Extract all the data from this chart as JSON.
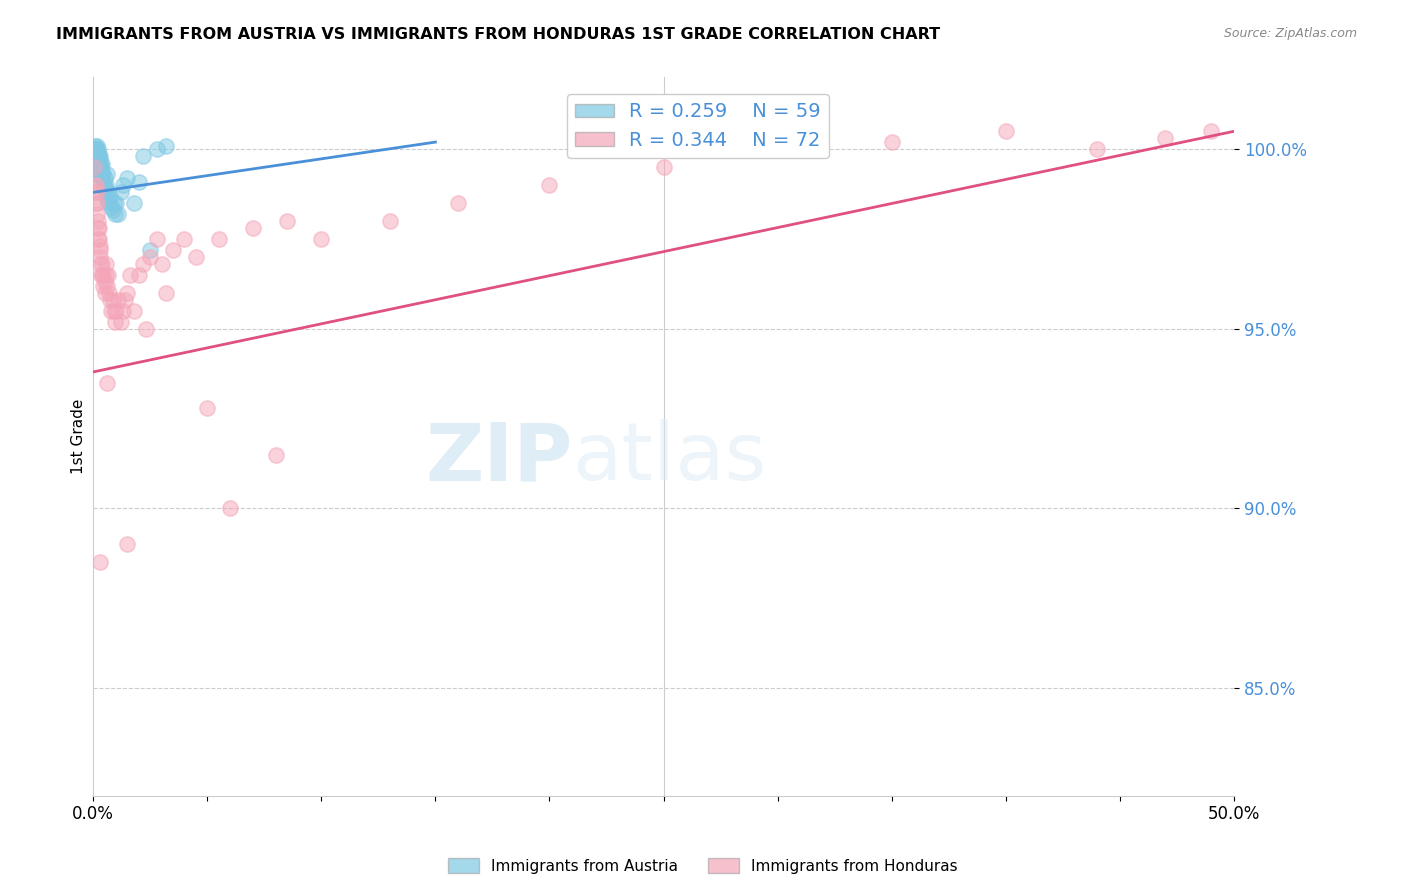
{
  "title": "IMMIGRANTS FROM AUSTRIA VS IMMIGRANTS FROM HONDURAS 1ST GRADE CORRELATION CHART",
  "source": "Source: ZipAtlas.com",
  "ylabel": "1st Grade",
  "xlim": [
    0.0,
    50.0
  ],
  "ylim": [
    82.0,
    102.0
  ],
  "yticks": [
    85.0,
    90.0,
    95.0,
    100.0
  ],
  "ytick_labels": [
    "85.0%",
    "90.0%",
    "95.0%",
    "100.0%"
  ],
  "austria_R": 0.259,
  "austria_N": 59,
  "honduras_R": 0.344,
  "honduras_N": 72,
  "austria_color": "#7ec8e3",
  "honduras_color": "#f4a6b8",
  "austria_line_color": "#4a90d9",
  "honduras_line_color": "#e05080",
  "legend_austria_label": "Immigrants from Austria",
  "legend_honduras_label": "Immigrants from Honduras",
  "watermark_zip": "ZIP",
  "watermark_atlas": "atlas",
  "austria_x": [
    0.05,
    0.08,
    0.1,
    0.1,
    0.12,
    0.12,
    0.13,
    0.15,
    0.15,
    0.16,
    0.17,
    0.18,
    0.18,
    0.2,
    0.2,
    0.2,
    0.22,
    0.22,
    0.25,
    0.25,
    0.28,
    0.28,
    0.3,
    0.3,
    0.32,
    0.32,
    0.35,
    0.35,
    0.38,
    0.4,
    0.4,
    0.42,
    0.45,
    0.48,
    0.5,
    0.52,
    0.55,
    0.55,
    0.58,
    0.6,
    0.62,
    0.65,
    0.7,
    0.75,
    0.8,
    0.85,
    0.9,
    0.95,
    1.0,
    1.1,
    1.2,
    1.3,
    1.5,
    1.8,
    2.0,
    2.2,
    2.5,
    2.8,
    3.2
  ],
  "austria_y": [
    100.0,
    99.8,
    100.1,
    99.9,
    100.0,
    99.7,
    100.0,
    99.8,
    99.6,
    99.9,
    100.1,
    99.7,
    99.5,
    100.0,
    99.8,
    99.5,
    99.9,
    99.6,
    99.8,
    99.5,
    99.7,
    99.4,
    99.8,
    99.5,
    99.6,
    99.3,
    99.5,
    99.2,
    99.4,
    99.6,
    99.2,
    99.0,
    99.3,
    99.0,
    99.2,
    98.9,
    99.0,
    98.7,
    98.9,
    98.6,
    99.3,
    98.8,
    98.5,
    98.7,
    98.4,
    98.3,
    98.5,
    98.2,
    98.5,
    98.2,
    98.8,
    99.0,
    99.2,
    98.5,
    99.1,
    99.8,
    97.2,
    100.0,
    100.1
  ],
  "honduras_x": [
    0.05,
    0.08,
    0.1,
    0.12,
    0.12,
    0.15,
    0.15,
    0.18,
    0.2,
    0.2,
    0.22,
    0.25,
    0.25,
    0.28,
    0.3,
    0.3,
    0.32,
    0.35,
    0.38,
    0.4,
    0.42,
    0.45,
    0.5,
    0.5,
    0.55,
    0.58,
    0.6,
    0.65,
    0.7,
    0.75,
    0.8,
    0.85,
    0.9,
    0.95,
    1.0,
    1.1,
    1.2,
    1.3,
    1.4,
    1.5,
    1.6,
    1.8,
    2.0,
    2.2,
    2.5,
    2.8,
    3.0,
    3.5,
    4.0,
    4.5,
    5.5,
    7.0,
    8.5,
    10.0,
    13.0,
    16.0,
    20.0,
    25.0,
    30.0,
    35.0,
    40.0,
    44.0,
    47.0,
    49.0,
    2.3,
    3.2,
    5.0,
    6.0,
    8.0,
    0.3,
    0.6,
    1.5
  ],
  "honduras_y": [
    99.5,
    99.0,
    98.8,
    98.5,
    99.0,
    98.5,
    98.8,
    98.2,
    98.0,
    97.8,
    97.5,
    97.5,
    97.8,
    97.2,
    97.0,
    97.3,
    96.8,
    96.5,
    96.5,
    96.8,
    96.2,
    96.5,
    96.0,
    96.3,
    96.5,
    96.8,
    96.2,
    96.5,
    96.0,
    95.8,
    95.5,
    95.8,
    95.5,
    95.2,
    95.5,
    95.8,
    95.2,
    95.5,
    95.8,
    96.0,
    96.5,
    95.5,
    96.5,
    96.8,
    97.0,
    97.5,
    96.8,
    97.2,
    97.5,
    97.0,
    97.5,
    97.8,
    98.0,
    97.5,
    98.0,
    98.5,
    99.0,
    99.5,
    100.0,
    100.2,
    100.5,
    100.0,
    100.3,
    100.5,
    95.0,
    96.0,
    92.8,
    90.0,
    91.5,
    88.5,
    93.5,
    89.0
  ]
}
